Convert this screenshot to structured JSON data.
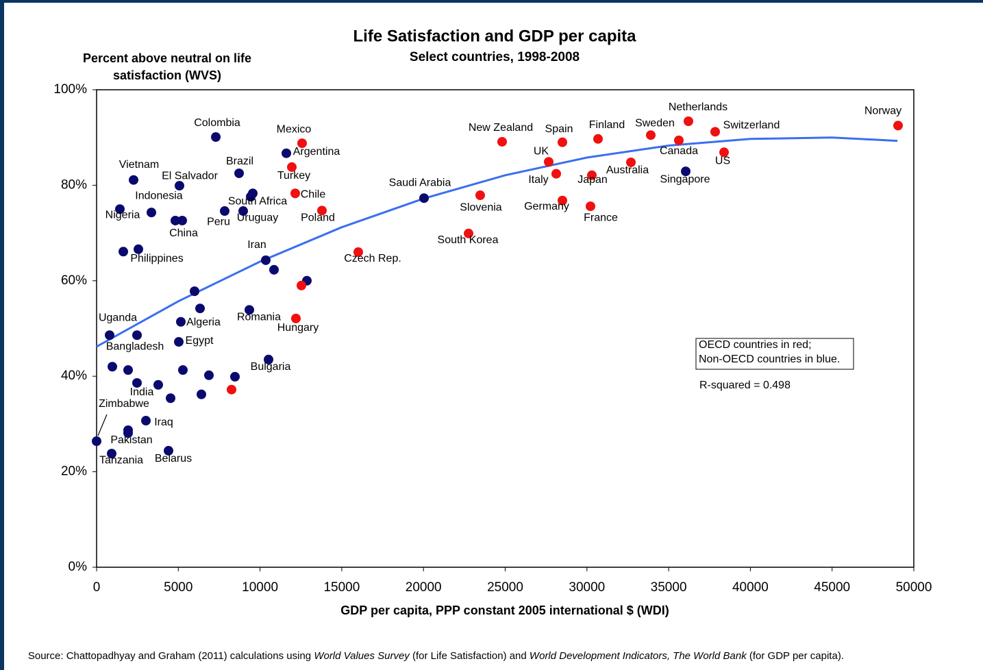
{
  "chart_data": {
    "type": "scatter",
    "title": "Life Satisfaction and GDP per capita",
    "subtitle": "Select countries, 1998-2008",
    "ylabel": [
      "Percent above neutral on life",
      "satisfaction (WVS)"
    ],
    "xlabel": "GDP per capita, PPP constant 2005 international $ (WDI)",
    "xlim": [
      0,
      50000
    ],
    "xticks": [
      0,
      5000,
      10000,
      15000,
      20000,
      25000,
      30000,
      35000,
      40000,
      45000,
      50000
    ],
    "ylim": [
      0,
      100
    ],
    "yticks": [
      {
        "value": 0,
        "label": "0%"
      },
      {
        "value": 20,
        "label": "20%"
      },
      {
        "value": 40,
        "label": "40%"
      },
      {
        "value": 60,
        "label": "60%"
      },
      {
        "value": 80,
        "label": "80%"
      },
      {
        "value": 100,
        "label": "100%"
      }
    ],
    "series": [
      {
        "color": "#0a0a6e",
        "x": [
          7293,
          8718,
          11610,
          2263,
          5071,
          3353,
          1425,
          4820,
          5239,
          9556,
          9430,
          7837,
          8969,
          1635,
          2557,
          10352,
          10855,
          12867,
          20034,
          36044,
          5993,
          6329,
          5155,
          9346,
          5029,
          796,
          2473,
          10520,
          964,
          1928,
          2473,
          3772,
          5281,
          6873,
          8466,
          4526,
          6412,
          3018,
          1928,
          1928,
          0,
          922,
          4401
        ],
        "values": [
          90.1,
          82.5,
          86.7,
          81.1,
          79.9,
          74.3,
          75.0,
          72.6,
          72.6,
          78.3,
          77.6,
          74.6,
          74.6,
          66.1,
          66.6,
          64.3,
          62.3,
          60.0,
          77.3,
          82.9,
          57.8,
          54.2,
          51.4,
          53.9,
          47.2,
          48.6,
          48.6,
          43.5,
          42.0,
          41.3,
          38.6,
          38.2,
          41.3,
          40.2,
          39.9,
          35.4,
          36.2,
          30.7,
          28.7,
          28.1,
          26.4,
          23.8,
          24.4
        ],
        "labels": [
          "Colombia",
          "Brazil",
          "Argentina",
          "Vietnam",
          "El Salvador",
          "Indonesia",
          "Nigeria",
          null,
          "China",
          null,
          "South Africa",
          "Peru",
          "Uruguay",
          null,
          "Philippines",
          "Iran",
          null,
          null,
          "Saudi Arabia",
          "Singapore",
          null,
          null,
          "Algeria",
          "Romania",
          "Egypt",
          "Uganda",
          "Bangladesh",
          "Bulgaria",
          null,
          null,
          "India",
          null,
          null,
          null,
          null,
          null,
          null,
          "Iraq",
          "Pakistan",
          null,
          "Zimbabwe",
          "Tanzania",
          "Belarus"
        ]
      },
      {
        "color": "#f01010",
        "x": [
          12573,
          11945,
          12154,
          13789,
          16010,
          12531,
          12196,
          8256,
          24811,
          28500,
          27661,
          28122,
          30679,
          33906,
          36211,
          37846,
          35624,
          38391,
          32691,
          30302,
          23470,
          28500,
          30218,
          22758,
          49036
        ],
        "values": [
          88.8,
          83.8,
          78.3,
          74.7,
          66.0,
          59.0,
          52.1,
          37.2,
          89.1,
          89.0,
          84.9,
          82.4,
          89.7,
          90.5,
          93.4,
          91.2,
          89.4,
          86.9,
          84.8,
          82.1,
          77.9,
          76.8,
          75.6,
          69.9,
          92.5
        ],
        "labels": [
          "Mexico",
          "Turkey",
          "Chile",
          "Poland",
          "Czech Rep.",
          null,
          "Hungary",
          null,
          "New Zealand",
          "Spain",
          "UK",
          "Italy",
          "Finland",
          "Sweden",
          "Netherlands",
          "Switzerland",
          "Canada",
          "US",
          "Australia",
          "Japan",
          "Slovenia",
          "Germany",
          "France",
          "South Korea",
          "Norway"
        ]
      }
    ],
    "trendline": {
      "color": "#3b6ef0",
      "x": [
        0,
        5000,
        10000,
        15000,
        20000,
        25000,
        30000,
        35000,
        40000,
        45000,
        49000
      ],
      "values": [
        46.2,
        55.7,
        64.0,
        71.2,
        77.2,
        82.1,
        85.8,
        88.3,
        89.7,
        90.0,
        89.3
      ]
    },
    "annotations": {
      "box": [
        "OECD countries in red;",
        "Non-OECD countries in blue."
      ],
      "r_squared": "R-squared = 0.498"
    },
    "source": [
      "Source: Chattopadhyay and Graham (2011) calculations using ",
      "World Values Survey",
      " (for Life Satisfaction) and ",
      "World Development Indicators, The World Bank",
      " (for GDP per capita)."
    ]
  }
}
